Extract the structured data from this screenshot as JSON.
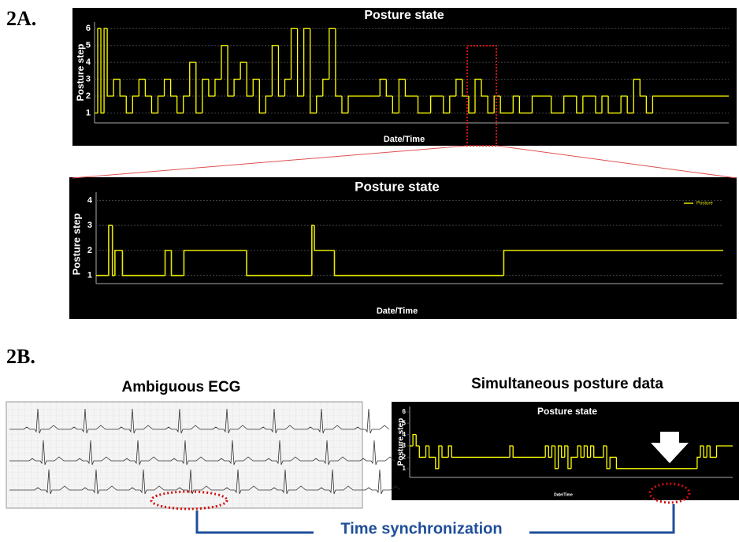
{
  "figure": {
    "label_a": "2A.",
    "label_b": "2B.",
    "ecg_title": "Ambiguous ECG",
    "posture_title": "Simultaneous posture data",
    "sync_label": "Time synchronization"
  },
  "chart_data": [
    {
      "type": "line",
      "title": "Posture state",
      "y_label": "Posture step",
      "x_label": "Date/Time",
      "color": "#ffff00",
      "xlim": [
        0,
        100
      ],
      "ylim": [
        0.6,
        6.2
      ],
      "yticks": [
        1,
        2,
        3,
        4,
        5,
        6
      ],
      "grid": true,
      "x": [
        0,
        0.5,
        1,
        1.5,
        2,
        3,
        4,
        5,
        6,
        7,
        8,
        9,
        10,
        11,
        12,
        13,
        14,
        15,
        16,
        17,
        18,
        19,
        20,
        21,
        22,
        23,
        24,
        25,
        26,
        27,
        28,
        29,
        30,
        31,
        32,
        33,
        34,
        35,
        36,
        37,
        38,
        39,
        40,
        42,
        45,
        46,
        47,
        48,
        49,
        51,
        53,
        55,
        56,
        57,
        58,
        59,
        60,
        61,
        62,
        63,
        64,
        66,
        67,
        69,
        72,
        74,
        76,
        77,
        79,
        80,
        81,
        83,
        84,
        85,
        86,
        87,
        88,
        90
      ],
      "values": [
        1,
        6,
        1,
        6,
        2,
        3,
        2,
        1,
        2,
        3,
        2,
        1,
        2,
        3,
        2,
        1,
        2,
        4,
        1,
        3,
        2,
        3,
        5,
        2,
        3,
        4,
        2,
        3,
        1,
        2,
        5,
        2,
        3,
        6,
        2,
        6,
        1,
        2,
        3,
        6,
        2,
        1,
        2,
        2,
        3,
        2,
        1,
        3,
        2,
        1,
        2,
        1,
        2,
        3,
        2,
        1,
        3,
        2,
        1,
        2,
        1,
        2,
        1,
        2,
        1,
        2,
        1,
        2,
        1,
        2,
        1,
        2,
        1,
        3,
        2,
        1,
        2,
        2
      ]
    },
    {
      "type": "line",
      "title": "Posture state",
      "y_label": "Posture step",
      "x_label": "Date/Time",
      "xlim": [
        0,
        100
      ],
      "ylim": [
        0.8,
        4.2
      ],
      "yticks": [
        1,
        2,
        3,
        4
      ],
      "grid": true,
      "x": [
        0,
        2,
        2.6,
        3,
        3.6,
        4.2,
        11,
        12,
        14,
        14.6,
        24,
        34,
        34.4,
        34.8,
        38,
        65
      ],
      "series": [
        {
          "name": "Posture",
          "color": "#e6e600",
          "values": [
            1,
            3,
            1,
            2,
            2,
            1,
            2,
            1,
            2,
            2,
            1,
            1,
            3,
            2,
            1,
            2
          ]
        }
      ]
    },
    {
      "type": "line",
      "title": "Posture state",
      "y_label": "Posture step",
      "x_label": "Date/Time",
      "color": "#ffff00",
      "xlim": [
        0,
        100
      ],
      "ylim": [
        0.5,
        6.2
      ],
      "yticks": [
        1,
        2,
        3,
        4,
        5,
        6
      ],
      "grid": false,
      "x": [
        0,
        1,
        2,
        3,
        5,
        6,
        8,
        9,
        10,
        12,
        13,
        15,
        30,
        31,
        32,
        40,
        42,
        43,
        44,
        45,
        46,
        47,
        48,
        49,
        50,
        52,
        53,
        54,
        55,
        56,
        57,
        60,
        61,
        62,
        64,
        88,
        89,
        90,
        91,
        92,
        93,
        95
      ],
      "values": [
        3,
        4,
        3,
        2,
        3,
        2,
        1,
        3,
        2,
        3,
        2,
        2,
        2,
        3,
        2,
        2,
        3,
        2,
        3,
        1,
        3,
        2,
        3,
        1,
        2,
        3,
        2,
        3,
        2,
        3,
        2,
        3,
        1,
        2,
        1,
        1,
        2,
        3,
        2,
        3,
        2,
        3
      ]
    }
  ]
}
